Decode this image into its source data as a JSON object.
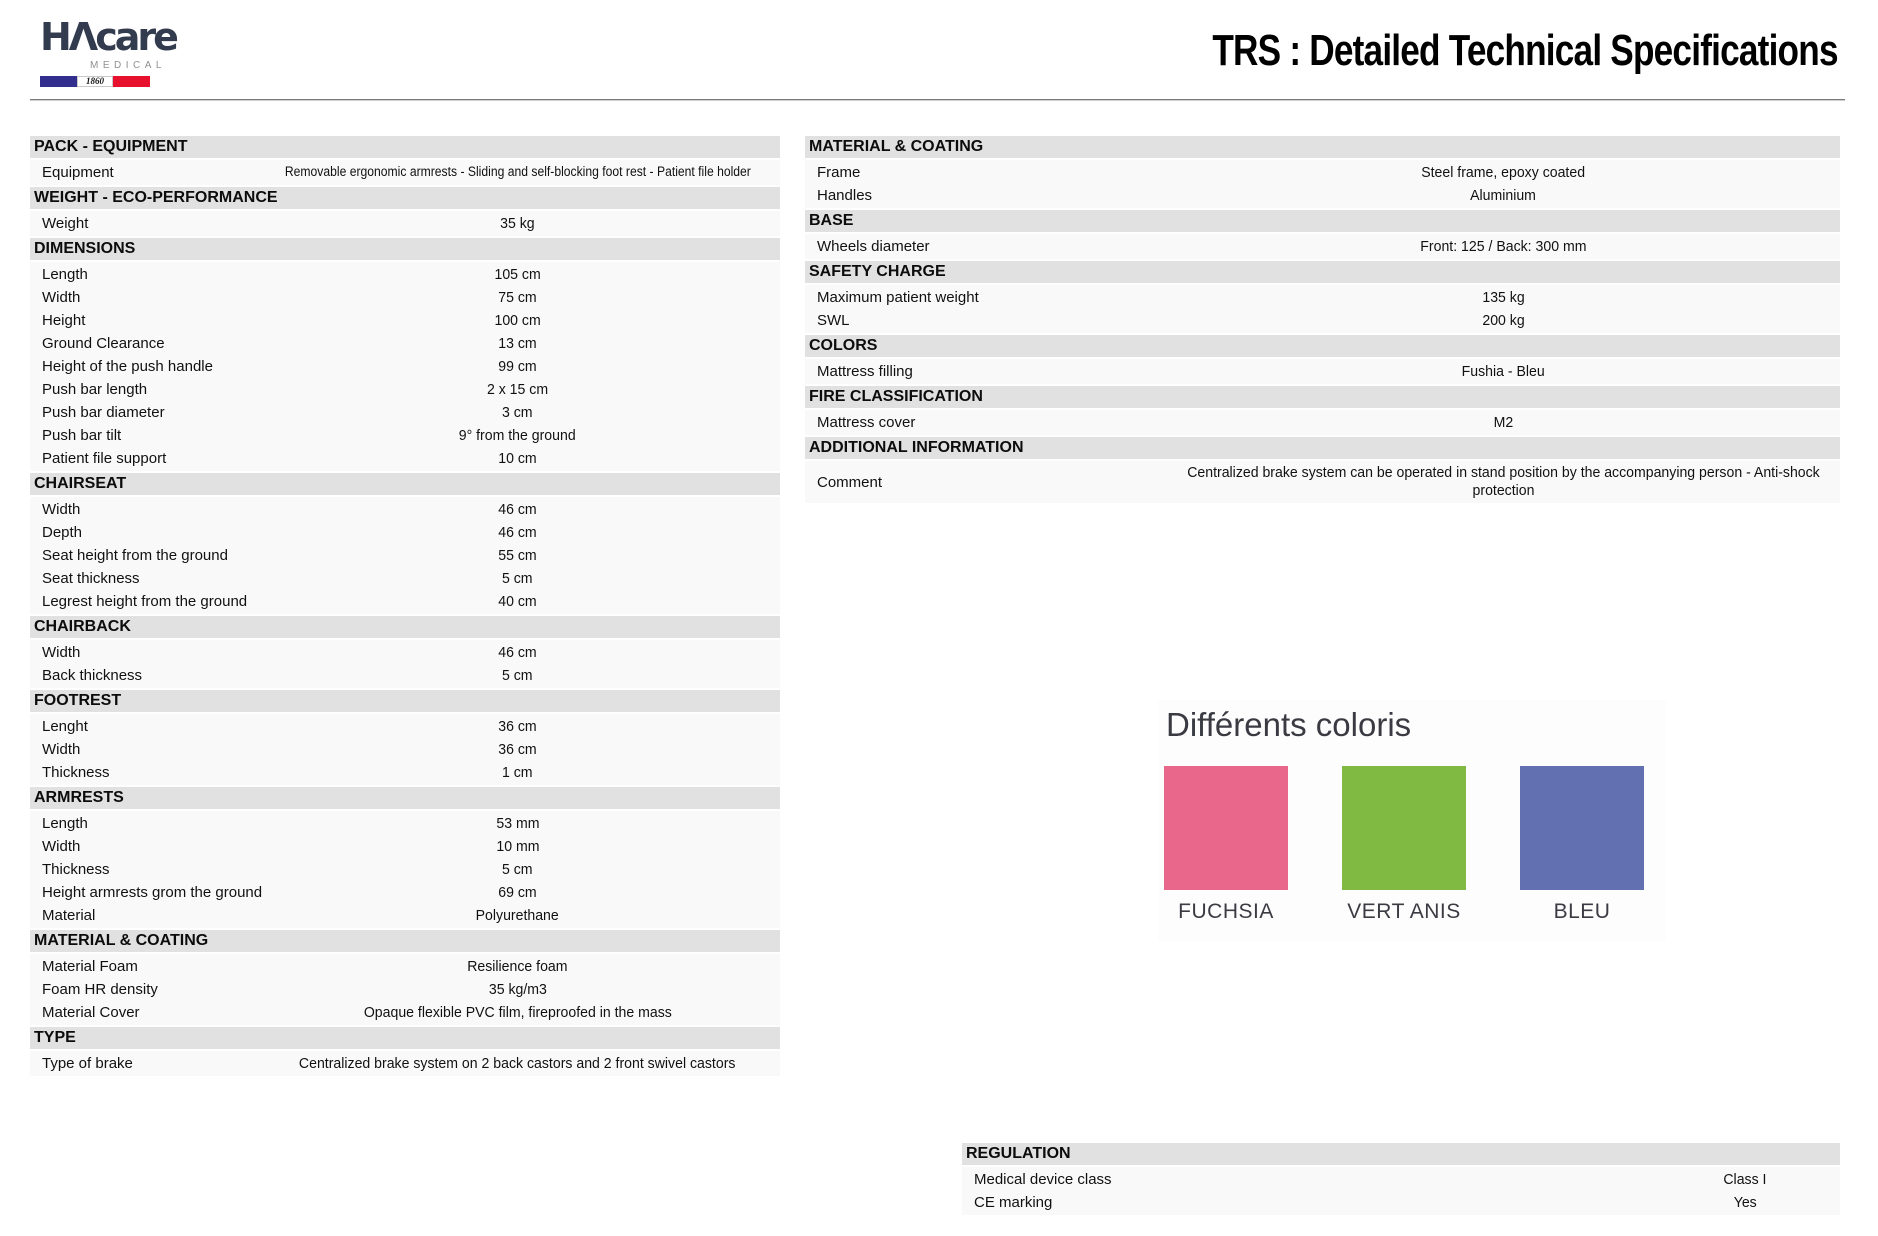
{
  "header": {
    "logo": {
      "brand": "HɅcare",
      "subtitle": "MEDICAL",
      "year": "1860"
    },
    "title": "TRS : Detailed Technical Specifications"
  },
  "left_sections": [
    {
      "title": "PACK - EQUIPMENT",
      "rows": [
        {
          "label": "Equipment",
          "value": "Removable ergonomic armrests - Sliding and self-blocking foot rest - Patient file holder"
        }
      ]
    },
    {
      "title": "WEIGHT - ECO-PERFORMANCE",
      "rows": [
        {
          "label": "Weight",
          "value": "35 kg"
        }
      ]
    },
    {
      "title": "DIMENSIONS",
      "rows": [
        {
          "label": "Length",
          "value": "105 cm"
        },
        {
          "label": "Width",
          "value": "75 cm"
        },
        {
          "label": "Height",
          "value": "100 cm"
        },
        {
          "label": "Ground Clearance",
          "value": "13 cm"
        },
        {
          "label": "Height of the push handle",
          "value": "99 cm"
        },
        {
          "label": "Push bar length",
          "value": "2 x 15 cm"
        },
        {
          "label": "Push bar diameter",
          "value": "3 cm"
        },
        {
          "label": "Push bar tilt",
          "value": "9° from the ground"
        },
        {
          "label": "Patient file support",
          "value": "10 cm"
        }
      ]
    },
    {
      "title": "CHAIRSEAT",
      "rows": [
        {
          "label": "Width",
          "value": "46 cm"
        },
        {
          "label": "Depth",
          "value": "46 cm"
        },
        {
          "label": "Seat height from the ground",
          "value": "55 cm"
        },
        {
          "label": "Seat thickness",
          "value": "5 cm"
        },
        {
          "label": "Legrest height from the ground",
          "value": "40 cm"
        }
      ]
    },
    {
      "title": "CHAIRBACK",
      "rows": [
        {
          "label": "Width",
          "value": "46 cm"
        },
        {
          "label": "Back thickness",
          "value": "5 cm"
        }
      ]
    },
    {
      "title": "FOOTREST",
      "rows": [
        {
          "label": "Lenght",
          "value": "36 cm"
        },
        {
          "label": "Width",
          "value": "36 cm"
        },
        {
          "label": "Thickness",
          "value": "1 cm"
        }
      ]
    },
    {
      "title": "ARMRESTS",
      "rows": [
        {
          "label": "Length",
          "value": "53 mm"
        },
        {
          "label": "Width",
          "value": "10 mm"
        },
        {
          "label": "Thickness",
          "value": "5 cm"
        },
        {
          "label": "Height armrests grom the ground",
          "value": "69 cm"
        },
        {
          "label": "Material",
          "value": "Polyurethane"
        }
      ]
    },
    {
      "title": "MATERIAL & COATING",
      "rows": [
        {
          "label": "Material Foam",
          "value": "Resilience foam"
        },
        {
          "label": "Foam HR density",
          "value": "35 kg/m3"
        },
        {
          "label": "Material Cover",
          "value": "Opaque flexible PVC film, fireproofed in the mass"
        }
      ]
    },
    {
      "title": "TYPE",
      "rows": [
        {
          "label": "Type of brake",
          "value": "Centralized brake system on 2 back castors and 2 front swivel castors"
        }
      ]
    }
  ],
  "right_sections": [
    {
      "title": "MATERIAL & COATING",
      "rows": [
        {
          "label": "Frame",
          "value": "Steel frame, epoxy coated"
        },
        {
          "label": "Handles",
          "value": "Aluminium"
        }
      ]
    },
    {
      "title": "BASE",
      "rows": [
        {
          "label": "Wheels diameter",
          "value": "Front: 125 / Back: 300 mm"
        }
      ]
    },
    {
      "title": "SAFETY CHARGE",
      "rows": [
        {
          "label": "Maximum patient weight",
          "value": "135 kg"
        },
        {
          "label": "SWL",
          "value": "200 kg"
        }
      ]
    },
    {
      "title": "COLORS",
      "rows": [
        {
          "label": "Mattress filling",
          "value": "Fushia - Bleu"
        }
      ]
    },
    {
      "title": "FIRE CLASSIFICATION",
      "rows": [
        {
          "label": "Mattress cover",
          "value": "M2"
        }
      ]
    },
    {
      "title": "ADDITIONAL INFORMATION",
      "rows": [
        {
          "label": "Comment",
          "value": "Centralized brake system can be operated in stand position by the accompanying person - Anti-shock protection"
        }
      ]
    }
  ],
  "regulation": {
    "title": "REGULATION",
    "rows": [
      {
        "label": "Medical device class",
        "value": "Class I"
      },
      {
        "label": "CE marking",
        "value": "Yes"
      }
    ]
  },
  "colors_figure": {
    "title": "Différents coloris",
    "swatches": [
      {
        "label": "FUCHSIA",
        "color": "#e8678a"
      },
      {
        "label": "VERT ANIS",
        "color": "#81ba43"
      },
      {
        "label": "BLEU",
        "color": "#6270b2"
      }
    ]
  },
  "theme": {
    "section_bar_bg": "#e1e1e1",
    "row_bg": "#f9f9f9",
    "text": "#111111",
    "logo_navy": "#333b4e",
    "medical_gray": "#919191",
    "flag_blue": "#312e8d",
    "flag_red": "#e8112d",
    "divider_gray": "#7a7a7a"
  }
}
